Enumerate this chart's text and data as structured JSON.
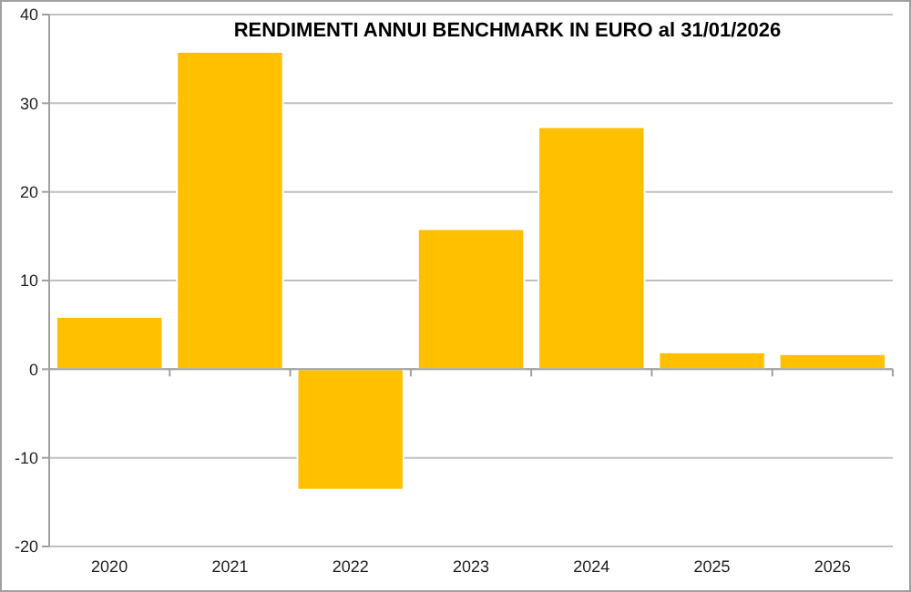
{
  "chart_data": {
    "type": "bar",
    "title": "RENDIMENTI ANNUI BENCHMARK IN EURO al 31/01/2026",
    "categories": [
      "2020",
      "2021",
      "2022",
      "2023",
      "2024",
      "2025",
      "2026"
    ],
    "values": [
      5.9,
      35.8,
      -13.6,
      15.8,
      27.3,
      1.9,
      1.7
    ],
    "color": "#ffc000",
    "ylim": [
      -20,
      40
    ],
    "yticks": [
      -20,
      -10,
      0,
      10,
      20,
      30,
      40
    ],
    "grid": "y"
  }
}
